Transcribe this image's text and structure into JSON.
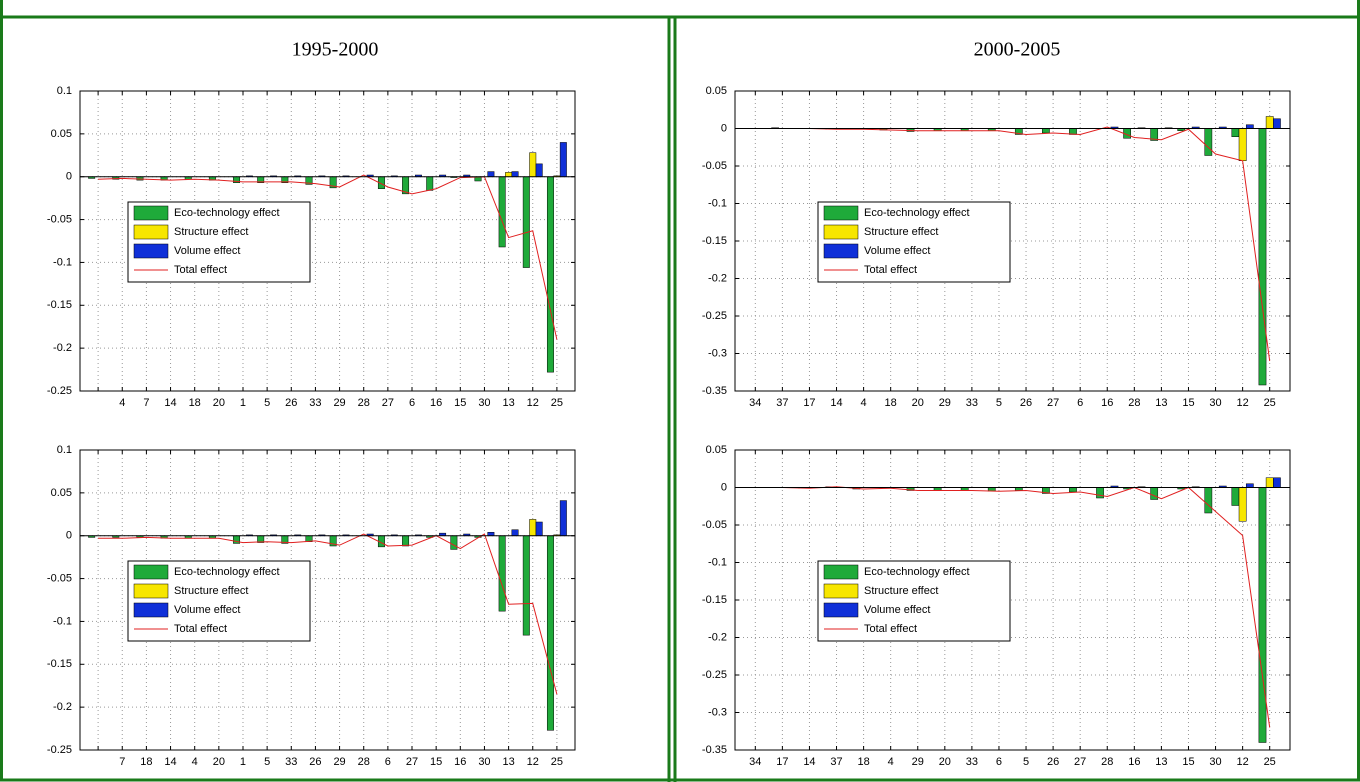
{
  "columns": [
    "1995-2000",
    "2000-2005"
  ],
  "chart_data": [
    {
      "type": "bar",
      "categories": [
        null,
        "4",
        "7",
        "14",
        "18",
        "20",
        "1",
        "5",
        "26",
        "33",
        "29",
        "28",
        "27",
        "6",
        "16",
        "15",
        "30",
        "13",
        "12",
        "25"
      ],
      "series": [
        {
          "name": "Eco-technology effect",
          "color": "#1faa3a",
          "values": [
            -0.002,
            -0.003,
            -0.004,
            -0.004,
            -0.003,
            -0.004,
            -0.007,
            -0.007,
            -0.007,
            -0.009,
            -0.013,
            0,
            -0.014,
            -0.02,
            -0.016,
            -0.001,
            -0.005,
            -0.082,
            -0.106,
            -0.228
          ]
        },
        {
          "name": "Structure effect",
          "color": "#f7e600",
          "values": [
            0,
            0,
            0,
            0,
            0,
            0,
            0,
            0,
            0,
            0,
            0,
            0,
            0,
            0,
            0,
            0,
            0,
            0.005,
            0.028,
            0.001
          ]
        },
        {
          "name": "Volume effect",
          "color": "#1030d8",
          "values": [
            0,
            0,
            0,
            0,
            0,
            0,
            0.001,
            0.001,
            0.001,
            0.001,
            0.001,
            0.002,
            0.001,
            0.002,
            0.002,
            0.002,
            0.006,
            0.006,
            0.015,
            0.04
          ]
        },
        {
          "name": "Total effect",
          "color": "#e02020",
          "type": "line",
          "values": [
            -0.003,
            -0.002,
            -0.003,
            -0.004,
            -0.003,
            -0.004,
            -0.006,
            -0.006,
            -0.006,
            -0.008,
            -0.012,
            0.002,
            -0.012,
            -0.02,
            -0.014,
            -0.001,
            0,
            -0.071,
            -0.063,
            -0.19
          ]
        }
      ],
      "ylim": [
        -0.25,
        0.1
      ],
      "yticks": [
        -0.25,
        -0.2,
        -0.15,
        -0.1,
        -0.05,
        0,
        0.05,
        0.1
      ],
      "grid": true,
      "legend": "west"
    },
    {
      "type": "bar",
      "categories": [
        "34",
        "37",
        "17",
        "14",
        "4",
        "18",
        "20",
        "29",
        "33",
        "5",
        "26",
        "27",
        "6",
        "16",
        "28",
        "13",
        "15",
        "30",
        "12",
        "25"
      ],
      "series": [
        {
          "name": "Eco-technology effect",
          "color": "#1faa3a",
          "values": [
            0,
            0.001,
            0,
            -0.001,
            -0.001,
            -0.002,
            -0.004,
            -0.003,
            -0.003,
            -0.003,
            -0.008,
            -0.006,
            -0.008,
            0,
            -0.013,
            -0.016,
            -0.003,
            -0.036,
            -0.011,
            -0.342
          ]
        },
        {
          "name": "Structure effect",
          "color": "#f7e600",
          "values": [
            0,
            0,
            0,
            0,
            0,
            0,
            0,
            0,
            0,
            0,
            0,
            0,
            0,
            0,
            0,
            0,
            0,
            0,
            -0.043,
            0.016
          ]
        },
        {
          "name": "Volume effect",
          "color": "#1030d8",
          "values": [
            0,
            0,
            0,
            0,
            0,
            0,
            0,
            0,
            0,
            0,
            0,
            0,
            0,
            0.002,
            0.001,
            0.001,
            0.002,
            0.002,
            0.005,
            0.013
          ]
        },
        {
          "name": "Total effect",
          "color": "#e02020",
          "type": "line",
          "values": [
            0,
            0,
            0,
            -0.001,
            -0.001,
            -0.002,
            -0.003,
            -0.003,
            -0.003,
            -0.003,
            -0.008,
            -0.006,
            -0.008,
            0.002,
            -0.012,
            -0.015,
            -0.001,
            -0.034,
            -0.043,
            -0.31
          ]
        }
      ],
      "ylim": [
        -0.35,
        0.05
      ],
      "yticks": [
        -0.35,
        -0.3,
        -0.25,
        -0.2,
        -0.15,
        -0.1,
        -0.05,
        0,
        0.05
      ],
      "grid": true,
      "legend": "west"
    },
    {
      "type": "bar",
      "categories": [
        null,
        "7",
        "18",
        "14",
        "4",
        "20",
        "1",
        "5",
        "33",
        "26",
        "29",
        "28",
        "6",
        "27",
        "15",
        "16",
        "30",
        "13",
        "12",
        "25"
      ],
      "series": [
        {
          "name": "Eco-technology effect",
          "color": "#1faa3a",
          "values": [
            -0.002,
            -0.002,
            -0.002,
            -0.003,
            -0.003,
            -0.003,
            -0.009,
            -0.008,
            -0.009,
            -0.007,
            -0.012,
            0,
            -0.013,
            -0.012,
            -0.002,
            -0.016,
            -0.002,
            -0.088,
            -0.116,
            -0.227
          ]
        },
        {
          "name": "Structure effect",
          "color": "#f7e600",
          "values": [
            0,
            0,
            0,
            0,
            0,
            0,
            0,
            0,
            0,
            0,
            0,
            0,
            0,
            0,
            0,
            0,
            0,
            0,
            0.019,
            0.001
          ]
        },
        {
          "name": "Volume effect",
          "color": "#1030d8",
          "values": [
            0,
            0,
            0,
            0,
            0,
            0,
            0.001,
            0.001,
            0.001,
            0.001,
            0.001,
            0.002,
            0.001,
            0.001,
            0.003,
            0.002,
            0.004,
            0.007,
            0.016,
            0.041
          ]
        },
        {
          "name": "Total effect",
          "color": "#e02020",
          "type": "line",
          "values": [
            -0.003,
            -0.003,
            -0.002,
            -0.003,
            -0.003,
            -0.003,
            -0.008,
            -0.007,
            -0.008,
            -0.006,
            -0.011,
            0.002,
            -0.012,
            -0.011,
            0,
            -0.015,
            0.002,
            -0.08,
            -0.079,
            -0.185
          ]
        }
      ],
      "ylim": [
        -0.25,
        0.1
      ],
      "yticks": [
        -0.25,
        -0.2,
        -0.15,
        -0.1,
        -0.05,
        0,
        0.05,
        0.1
      ],
      "grid": true,
      "legend": "west"
    },
    {
      "type": "bar",
      "categories": [
        "34",
        "17",
        "14",
        "37",
        "18",
        "4",
        "29",
        "20",
        "33",
        "6",
        "5",
        "26",
        "27",
        "28",
        "16",
        "13",
        "15",
        "30",
        "12",
        "25"
      ],
      "series": [
        {
          "name": "Eco-technology effect",
          "color": "#1faa3a",
          "values": [
            0,
            0,
            -0.001,
            0.001,
            -0.002,
            -0.001,
            -0.004,
            -0.004,
            -0.004,
            -0.005,
            -0.004,
            -0.008,
            -0.006,
            -0.014,
            -0.002,
            -0.016,
            -0.002,
            -0.034,
            -0.024,
            -0.34
          ]
        },
        {
          "name": "Structure effect",
          "color": "#f7e600",
          "values": [
            0,
            0,
            0,
            0,
            0,
            0,
            0,
            0,
            0,
            0,
            0,
            0,
            0,
            0,
            0,
            0,
            0,
            0,
            -0.045,
            0.013
          ]
        },
        {
          "name": "Volume effect",
          "color": "#1030d8",
          "values": [
            0,
            0,
            0,
            0,
            0,
            0,
            0,
            0,
            0,
            0,
            0,
            0,
            0,
            0.002,
            0.001,
            0,
            0.001,
            0.002,
            0.005,
            0.013
          ]
        },
        {
          "name": "Total effect",
          "color": "#e02020",
          "type": "line",
          "values": [
            0,
            0,
            -0.001,
            0.001,
            -0.002,
            -0.001,
            -0.004,
            -0.004,
            -0.004,
            -0.005,
            -0.004,
            -0.008,
            -0.006,
            -0.012,
            0,
            -0.015,
            0,
            -0.032,
            -0.064,
            -0.32
          ]
        }
      ],
      "ylim": [
        -0.35,
        0.05
      ],
      "yticks": [
        -0.35,
        -0.3,
        -0.25,
        -0.2,
        -0.15,
        -0.1,
        -0.05,
        0,
        0.05
      ],
      "grid": true,
      "legend": "west"
    }
  ]
}
